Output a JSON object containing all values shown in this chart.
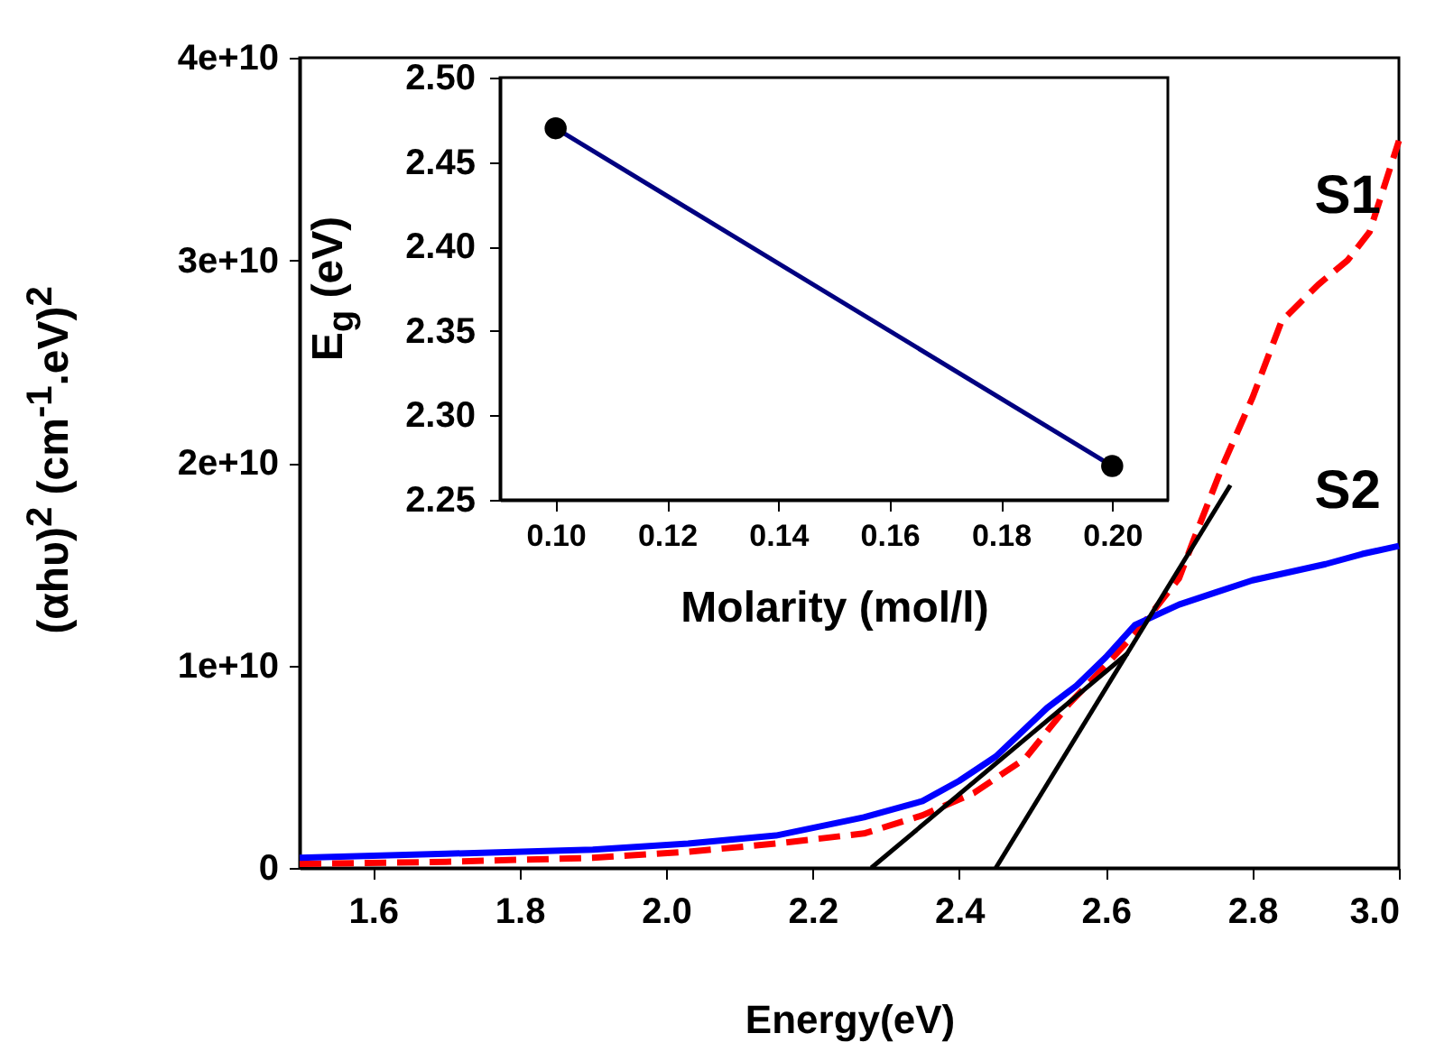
{
  "chart_data": [
    {
      "type": "line",
      "xlabel": "Energy(eV)",
      "ylabel": "(αhυ)$^{2}$ (cm$^{-1}$.eV)$^{2}$",
      "xlim": [
        1.5,
        3.0
      ],
      "xticks": [
        {
          "value": 1.6,
          "label": "1.6"
        },
        {
          "value": 1.8,
          "label": "1.8"
        },
        {
          "value": 2.0,
          "label": "2.0"
        },
        {
          "value": 2.2,
          "label": "2.2"
        },
        {
          "value": 2.4,
          "label": "2.4"
        },
        {
          "value": 2.6,
          "label": "2.6"
        },
        {
          "value": 2.8,
          "label": "2.8"
        },
        {
          "value": 3.0,
          "label": "3.0"
        }
      ],
      "ylim": [
        0,
        40000000000.0
      ],
      "yticks": [
        {
          "value": 0,
          "label": "0"
        },
        {
          "value": 10000000000.0,
          "label": "1e+10"
        },
        {
          "value": 20000000000.0,
          "label": "2e+10"
        },
        {
          "value": 30000000000.0,
          "label": "3e+10"
        },
        {
          "value": 40000000000.0,
          "label": "4e+10"
        }
      ],
      "series": [
        {
          "name": "S1",
          "color": "#ff0000",
          "line_style": "dashed",
          "x": [
            1.5,
            1.7,
            1.9,
            2.03,
            2.15,
            2.27,
            2.35,
            2.42,
            2.49,
            2.55,
            2.6,
            2.65,
            2.7,
            2.72,
            2.76,
            2.8,
            2.84,
            2.89,
            2.93,
            2.96,
            3.0
          ],
          "values": [
            200000000.0,
            300000000.0,
            500000000.0,
            800000000.0,
            1200000000.0,
            1700000000.0,
            2600000000.0,
            3700000000.0,
            5400000000.0,
            8100000000.0,
            10000000000.0,
            12000000000.0,
            14300000000.0,
            16200000000.0,
            19900000000.0,
            23200000000.0,
            27000000000.0,
            28800000000.0,
            30000000000.0,
            31400000000.0,
            35900000000.0
          ]
        },
        {
          "name": "S2",
          "color": "#0000ff",
          "line_style": "solid",
          "x": [
            1.5,
            1.7,
            1.9,
            2.03,
            2.15,
            2.27,
            2.35,
            2.4,
            2.45,
            2.52,
            2.56,
            2.6,
            2.64,
            2.7,
            2.75,
            2.8,
            2.85,
            2.9,
            2.95,
            3.0
          ],
          "values": [
            500000000.0,
            700000000.0,
            900000000.0,
            1200000000.0,
            1600000000.0,
            2500000000.0,
            3300000000.0,
            4300000000.0,
            5500000000.0,
            7900000000.0,
            9000000000.0,
            10400000000.0,
            12000000000.0,
            13000000000.0,
            13600000000.0,
            14200000000.0,
            14600000000.0,
            15000000000.0,
            15500000000.0,
            15900000000.0
          ]
        },
        {
          "type": "line",
          "color": "#000000",
          "line_style": "solid",
          "x": [
            2.28,
            2.63
          ],
          "values": [
            0,
            10600000000.0
          ]
        },
        {
          "type": "line",
          "color": "#000000",
          "line_style": "solid",
          "x": [
            2.45,
            2.77
          ],
          "values": [
            0,
            18900000000.0
          ]
        }
      ]
    },
    {
      "type": "line",
      "xlabel": "Molarity (mol/l)",
      "ylabel": "E$_{g}$ (eV)",
      "marker": "circle",
      "xlim": [
        0.09,
        0.21
      ],
      "xticks": [
        {
          "value": 0.1,
          "label": "0.10"
        },
        {
          "value": 0.12,
          "label": "0.12"
        },
        {
          "value": 0.14,
          "label": "0.14"
        },
        {
          "value": 0.16,
          "label": "0.16"
        },
        {
          "value": 0.18,
          "label": "0.18"
        },
        {
          "value": 0.2,
          "label": "0.20"
        }
      ],
      "ylim": [
        2.25,
        2.5
      ],
      "yticks": [
        {
          "value": 2.25,
          "label": "2.25"
        },
        {
          "value": 2.3,
          "label": "2.30"
        },
        {
          "value": 2.35,
          "label": "2.35"
        },
        {
          "value": 2.4,
          "label": "2.40"
        },
        {
          "value": 2.45,
          "label": "2.45"
        },
        {
          "value": 2.5,
          "label": "2.50"
        }
      ],
      "series": [
        {
          "color": "#000080",
          "x": [
            0.1,
            0.2
          ],
          "values": [
            2.47,
            2.27
          ]
        }
      ]
    }
  ]
}
